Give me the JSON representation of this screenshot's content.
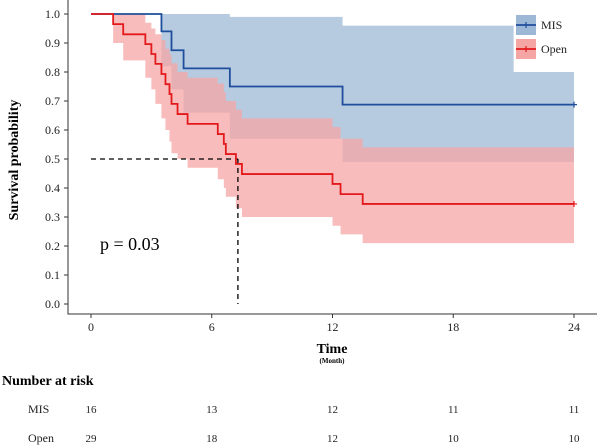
{
  "chart_data": {
    "type": "line",
    "subtype": "kaplan-meier",
    "xlabel": "Time",
    "xlabel_sub": "(Month)",
    "ylabel": "Survival probability",
    "xlim": [
      0,
      24
    ],
    "ylim": [
      0,
      1
    ],
    "x_ticks": [
      0,
      6,
      12,
      18,
      24
    ],
    "y_ticks": [
      0.0,
      0.1,
      0.2,
      0.3,
      0.4,
      0.5,
      0.6,
      0.7,
      0.8,
      0.9,
      1.0
    ],
    "grid": false,
    "legend_position": "top-right",
    "p_value_text": "p = 0.03",
    "median_survival": {
      "y": 0.5,
      "x": 7.3
    },
    "series": [
      {
        "name": "MIS",
        "color": "#1f4e9c",
        "band_color": "#9db8d6",
        "steps": [
          [
            0,
            1.0
          ],
          [
            3.5,
            0.94
          ],
          [
            4.0,
            0.875
          ],
          [
            4.6,
            0.8125
          ],
          [
            6.9,
            0.75
          ],
          [
            12.5,
            0.6875
          ],
          [
            24,
            0.6875
          ]
        ],
        "ci_lower": [
          [
            0,
            1.0
          ],
          [
            3.5,
            0.82
          ],
          [
            4.0,
            0.74
          ],
          [
            4.6,
            0.66
          ],
          [
            6.9,
            0.57
          ],
          [
            12.5,
            0.49
          ],
          [
            24,
            0.49
          ]
        ],
        "ci_upper": [
          [
            0,
            1.0
          ],
          [
            3.5,
            1.0
          ],
          [
            4.6,
            1.0
          ],
          [
            6.9,
            0.99
          ],
          [
            12.5,
            0.96
          ],
          [
            21.0,
            0.96
          ],
          [
            21.0,
            0.8
          ],
          [
            24,
            0.8
          ]
        ],
        "censor_x": [
          24
        ]
      },
      {
        "name": "Open",
        "color": "#e31a1c",
        "band_color": "#f6a5a5",
        "steps": [
          [
            0,
            1.0
          ],
          [
            1.1,
            0.965
          ],
          [
            1.6,
            0.93
          ],
          [
            2.7,
            0.896
          ],
          [
            3.0,
            0.862
          ],
          [
            3.2,
            0.828
          ],
          [
            3.5,
            0.793
          ],
          [
            3.7,
            0.758
          ],
          [
            3.9,
            0.724
          ],
          [
            4.0,
            0.69
          ],
          [
            4.3,
            0.655
          ],
          [
            4.8,
            0.621
          ],
          [
            6.3,
            0.586
          ],
          [
            6.6,
            0.552
          ],
          [
            6.7,
            0.517
          ],
          [
            7.2,
            0.483
          ],
          [
            7.5,
            0.448
          ],
          [
            8.9,
            0.448
          ],
          [
            10.0,
            0.448
          ],
          [
            12.0,
            0.414
          ],
          [
            12.4,
            0.379
          ],
          [
            13.5,
            0.345
          ],
          [
            24,
            0.345
          ]
        ],
        "ci_lower": [
          [
            0,
            1.0
          ],
          [
            1.1,
            0.9
          ],
          [
            1.6,
            0.84
          ],
          [
            2.7,
            0.78
          ],
          [
            3.0,
            0.74
          ],
          [
            3.2,
            0.69
          ],
          [
            3.5,
            0.64
          ],
          [
            3.7,
            0.6
          ],
          [
            3.9,
            0.56
          ],
          [
            4.0,
            0.52
          ],
          [
            4.3,
            0.5
          ],
          [
            4.8,
            0.47
          ],
          [
            6.3,
            0.43
          ],
          [
            6.6,
            0.4
          ],
          [
            6.7,
            0.37
          ],
          [
            7.2,
            0.33
          ],
          [
            7.5,
            0.3
          ],
          [
            12.0,
            0.27
          ],
          [
            12.4,
            0.24
          ],
          [
            13.5,
            0.21
          ],
          [
            24,
            0.21
          ]
        ],
        "ci_upper": [
          [
            0,
            1.0
          ],
          [
            1.6,
            1.0
          ],
          [
            2.7,
            0.97
          ],
          [
            3.0,
            0.95
          ],
          [
            3.2,
            0.93
          ],
          [
            3.5,
            0.91
          ],
          [
            3.7,
            0.88
          ],
          [
            3.9,
            0.86
          ],
          [
            4.0,
            0.83
          ],
          [
            4.3,
            0.8
          ],
          [
            4.8,
            0.78
          ],
          [
            6.3,
            0.76
          ],
          [
            6.6,
            0.73
          ],
          [
            6.7,
            0.7
          ],
          [
            7.2,
            0.67
          ],
          [
            7.5,
            0.64
          ],
          [
            12.0,
            0.61
          ],
          [
            12.4,
            0.57
          ],
          [
            13.5,
            0.54
          ],
          [
            24,
            0.54
          ]
        ],
        "censor_x": [
          24
        ]
      }
    ]
  },
  "risk_table": {
    "title": "Number at risk",
    "times": [
      0,
      6,
      12,
      18,
      24
    ],
    "rows": [
      {
        "name": "MIS",
        "values": [
          "16",
          "13",
          "12",
          "11",
          "11"
        ]
      },
      {
        "name": "Open",
        "values": [
          "29",
          "18",
          "12",
          "10",
          "10"
        ]
      }
    ]
  }
}
